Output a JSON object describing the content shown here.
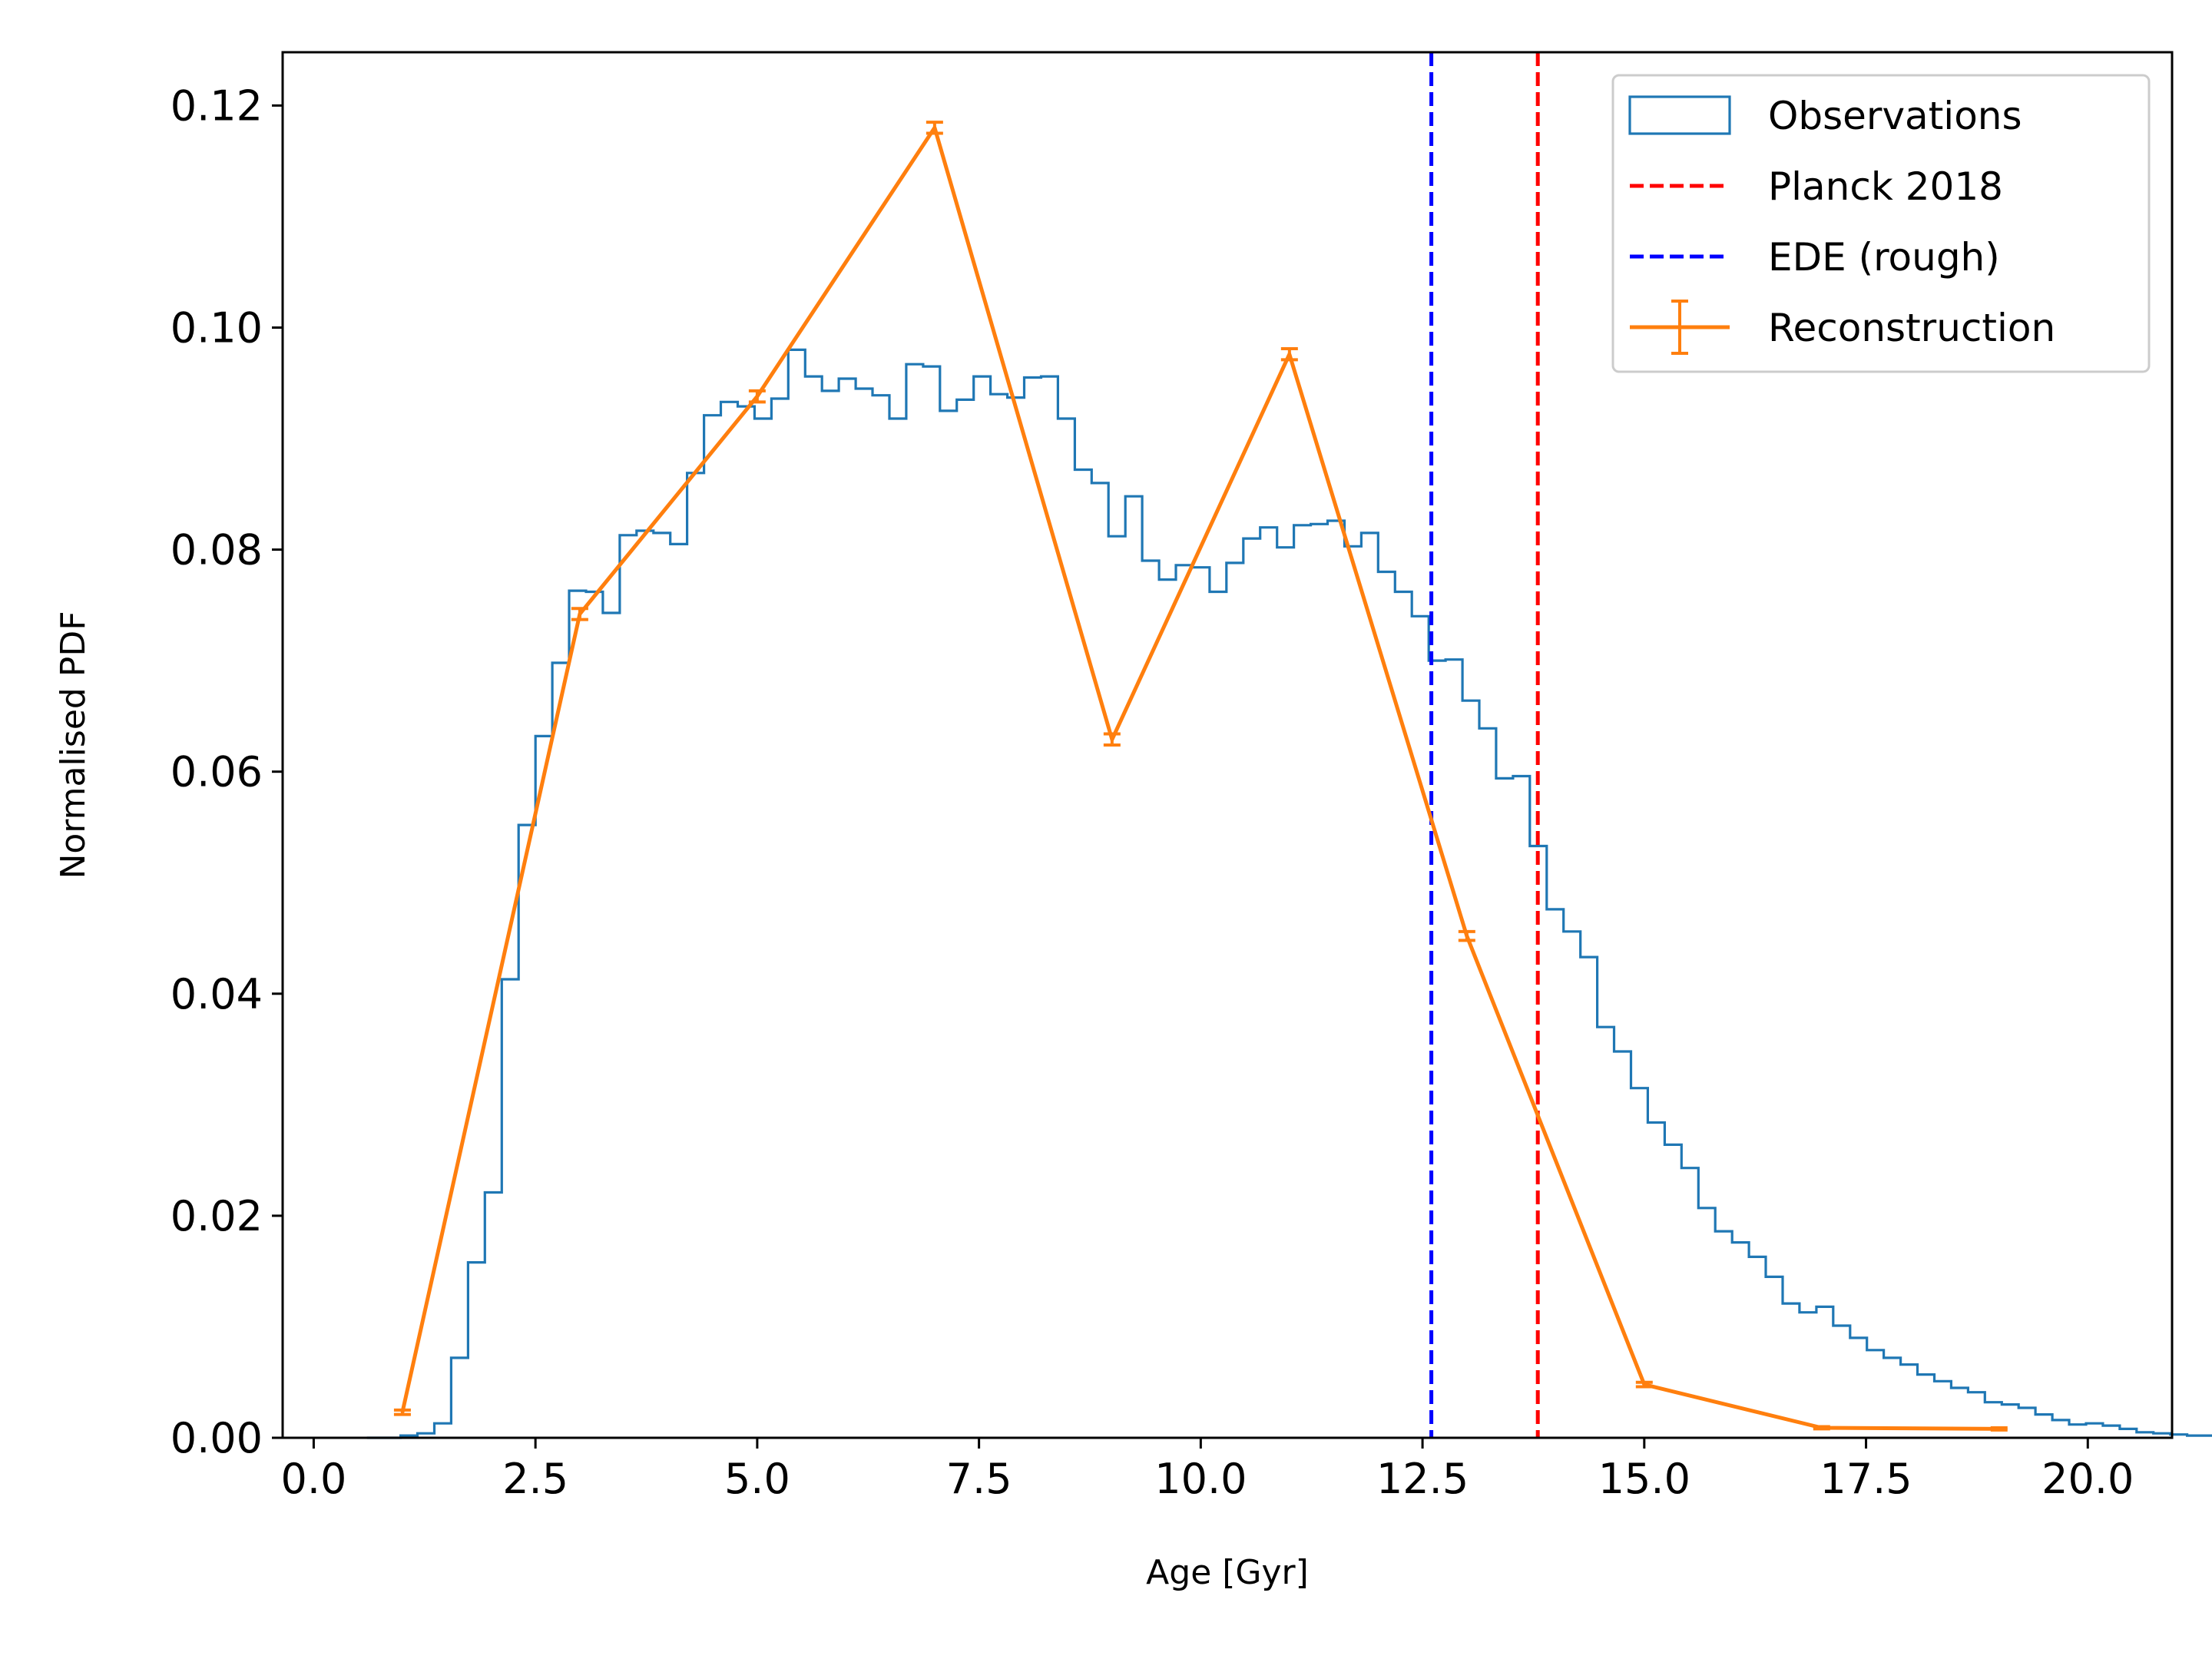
{
  "chart_data": {
    "type": "line",
    "xlabel": "Age [Gyr]",
    "ylabel": "Normalised PDF",
    "xlim": [
      -0.35,
      20.95
    ],
    "ylim": [
      0.0,
      0.1248
    ],
    "xticks": [
      0.0,
      2.5,
      5.0,
      7.5,
      10.0,
      12.5,
      15.0,
      17.5,
      20.0
    ],
    "xtick_labels": [
      "0.0",
      "2.5",
      "5.0",
      "7.5",
      "10.0",
      "12.5",
      "15.0",
      "17.5",
      "20.0"
    ],
    "yticks": [
      0.0,
      0.02,
      0.04,
      0.06,
      0.08,
      0.1,
      0.12
    ],
    "ytick_labels": [
      "0.00",
      "0.02",
      "0.04",
      "0.06",
      "0.08",
      "0.10",
      "0.12"
    ],
    "grid": false,
    "legend_position": "top-right",
    "legend": [
      {
        "label": "Observations",
        "kind": "step-patch",
        "color": "#1f77b4"
      },
      {
        "label": "Planck 2018",
        "kind": "dashed",
        "color": "#ff0000"
      },
      {
        "label": "EDE (rough)",
        "kind": "dashed",
        "color": "#0000ff"
      },
      {
        "label": "Reconstruction",
        "kind": "errorbar",
        "color": "#ff7f0e"
      }
    ],
    "histogram": {
      "name": "Observations",
      "color": "#1f77b4",
      "bin_start": 0.6,
      "bin_width": 0.19,
      "values": [
        0.0,
        0.0,
        0.0002,
        0.0004,
        0.0013,
        0.0072,
        0.0158,
        0.0221,
        0.0413,
        0.0552,
        0.0632,
        0.0698,
        0.0763,
        0.0762,
        0.0743,
        0.0813,
        0.0817,
        0.0815,
        0.0805,
        0.0869,
        0.0921,
        0.0933,
        0.0929,
        0.0918,
        0.0936,
        0.098,
        0.0956,
        0.0943,
        0.0954,
        0.0945,
        0.0939,
        0.0918,
        0.0967,
        0.0965,
        0.0925,
        0.0935,
        0.0956,
        0.094,
        0.0937,
        0.0955,
        0.0956,
        0.0918,
        0.0872,
        0.086,
        0.0812,
        0.0848,
        0.079,
        0.0773,
        0.0786,
        0.0784,
        0.0762,
        0.0788,
        0.081,
        0.082,
        0.0802,
        0.0822,
        0.0823,
        0.0826,
        0.0803,
        0.0815,
        0.078,
        0.0762,
        0.074,
        0.07,
        0.0701,
        0.0664,
        0.0639,
        0.0594,
        0.0596,
        0.0533,
        0.0476,
        0.0456,
        0.0433,
        0.037,
        0.0348,
        0.0315,
        0.0284,
        0.0264,
        0.0243,
        0.0207,
        0.0186,
        0.0176,
        0.0163,
        0.0145,
        0.0121,
        0.0113,
        0.0118,
        0.0101,
        0.009,
        0.0079,
        0.0072,
        0.0066,
        0.0057,
        0.0051,
        0.0045,
        0.0041,
        0.0032,
        0.003,
        0.0027,
        0.0021,
        0.0016,
        0.0012,
        0.0013,
        0.0011,
        0.0008,
        0.0005,
        0.0004,
        0.0003,
        0.0002,
        0.0002,
        0.0001
      ]
    },
    "vlines": [
      {
        "name": "Planck 2018",
        "x": 13.8,
        "color": "#ff0000",
        "style": "dashed"
      },
      {
        "name": "EDE (rough)",
        "x": 12.6,
        "color": "#0000ff",
        "style": "dashed"
      }
    ],
    "series": [
      {
        "name": "Reconstruction",
        "color": "#ff7f0e",
        "x": [
          1.0,
          3.0,
          5.0,
          7.0,
          9.0,
          11.0,
          13.0,
          15.0,
          17.0,
          19.0
        ],
        "y": [
          0.0023,
          0.0742,
          0.0938,
          0.118,
          0.0629,
          0.0976,
          0.0452,
          0.0048,
          0.0009,
          0.0008
        ],
        "yerr": [
          0.0002,
          0.0005,
          0.0005,
          0.0005,
          0.0005,
          0.0005,
          0.0004,
          0.0002,
          0.0001,
          0.0001
        ]
      }
    ]
  }
}
